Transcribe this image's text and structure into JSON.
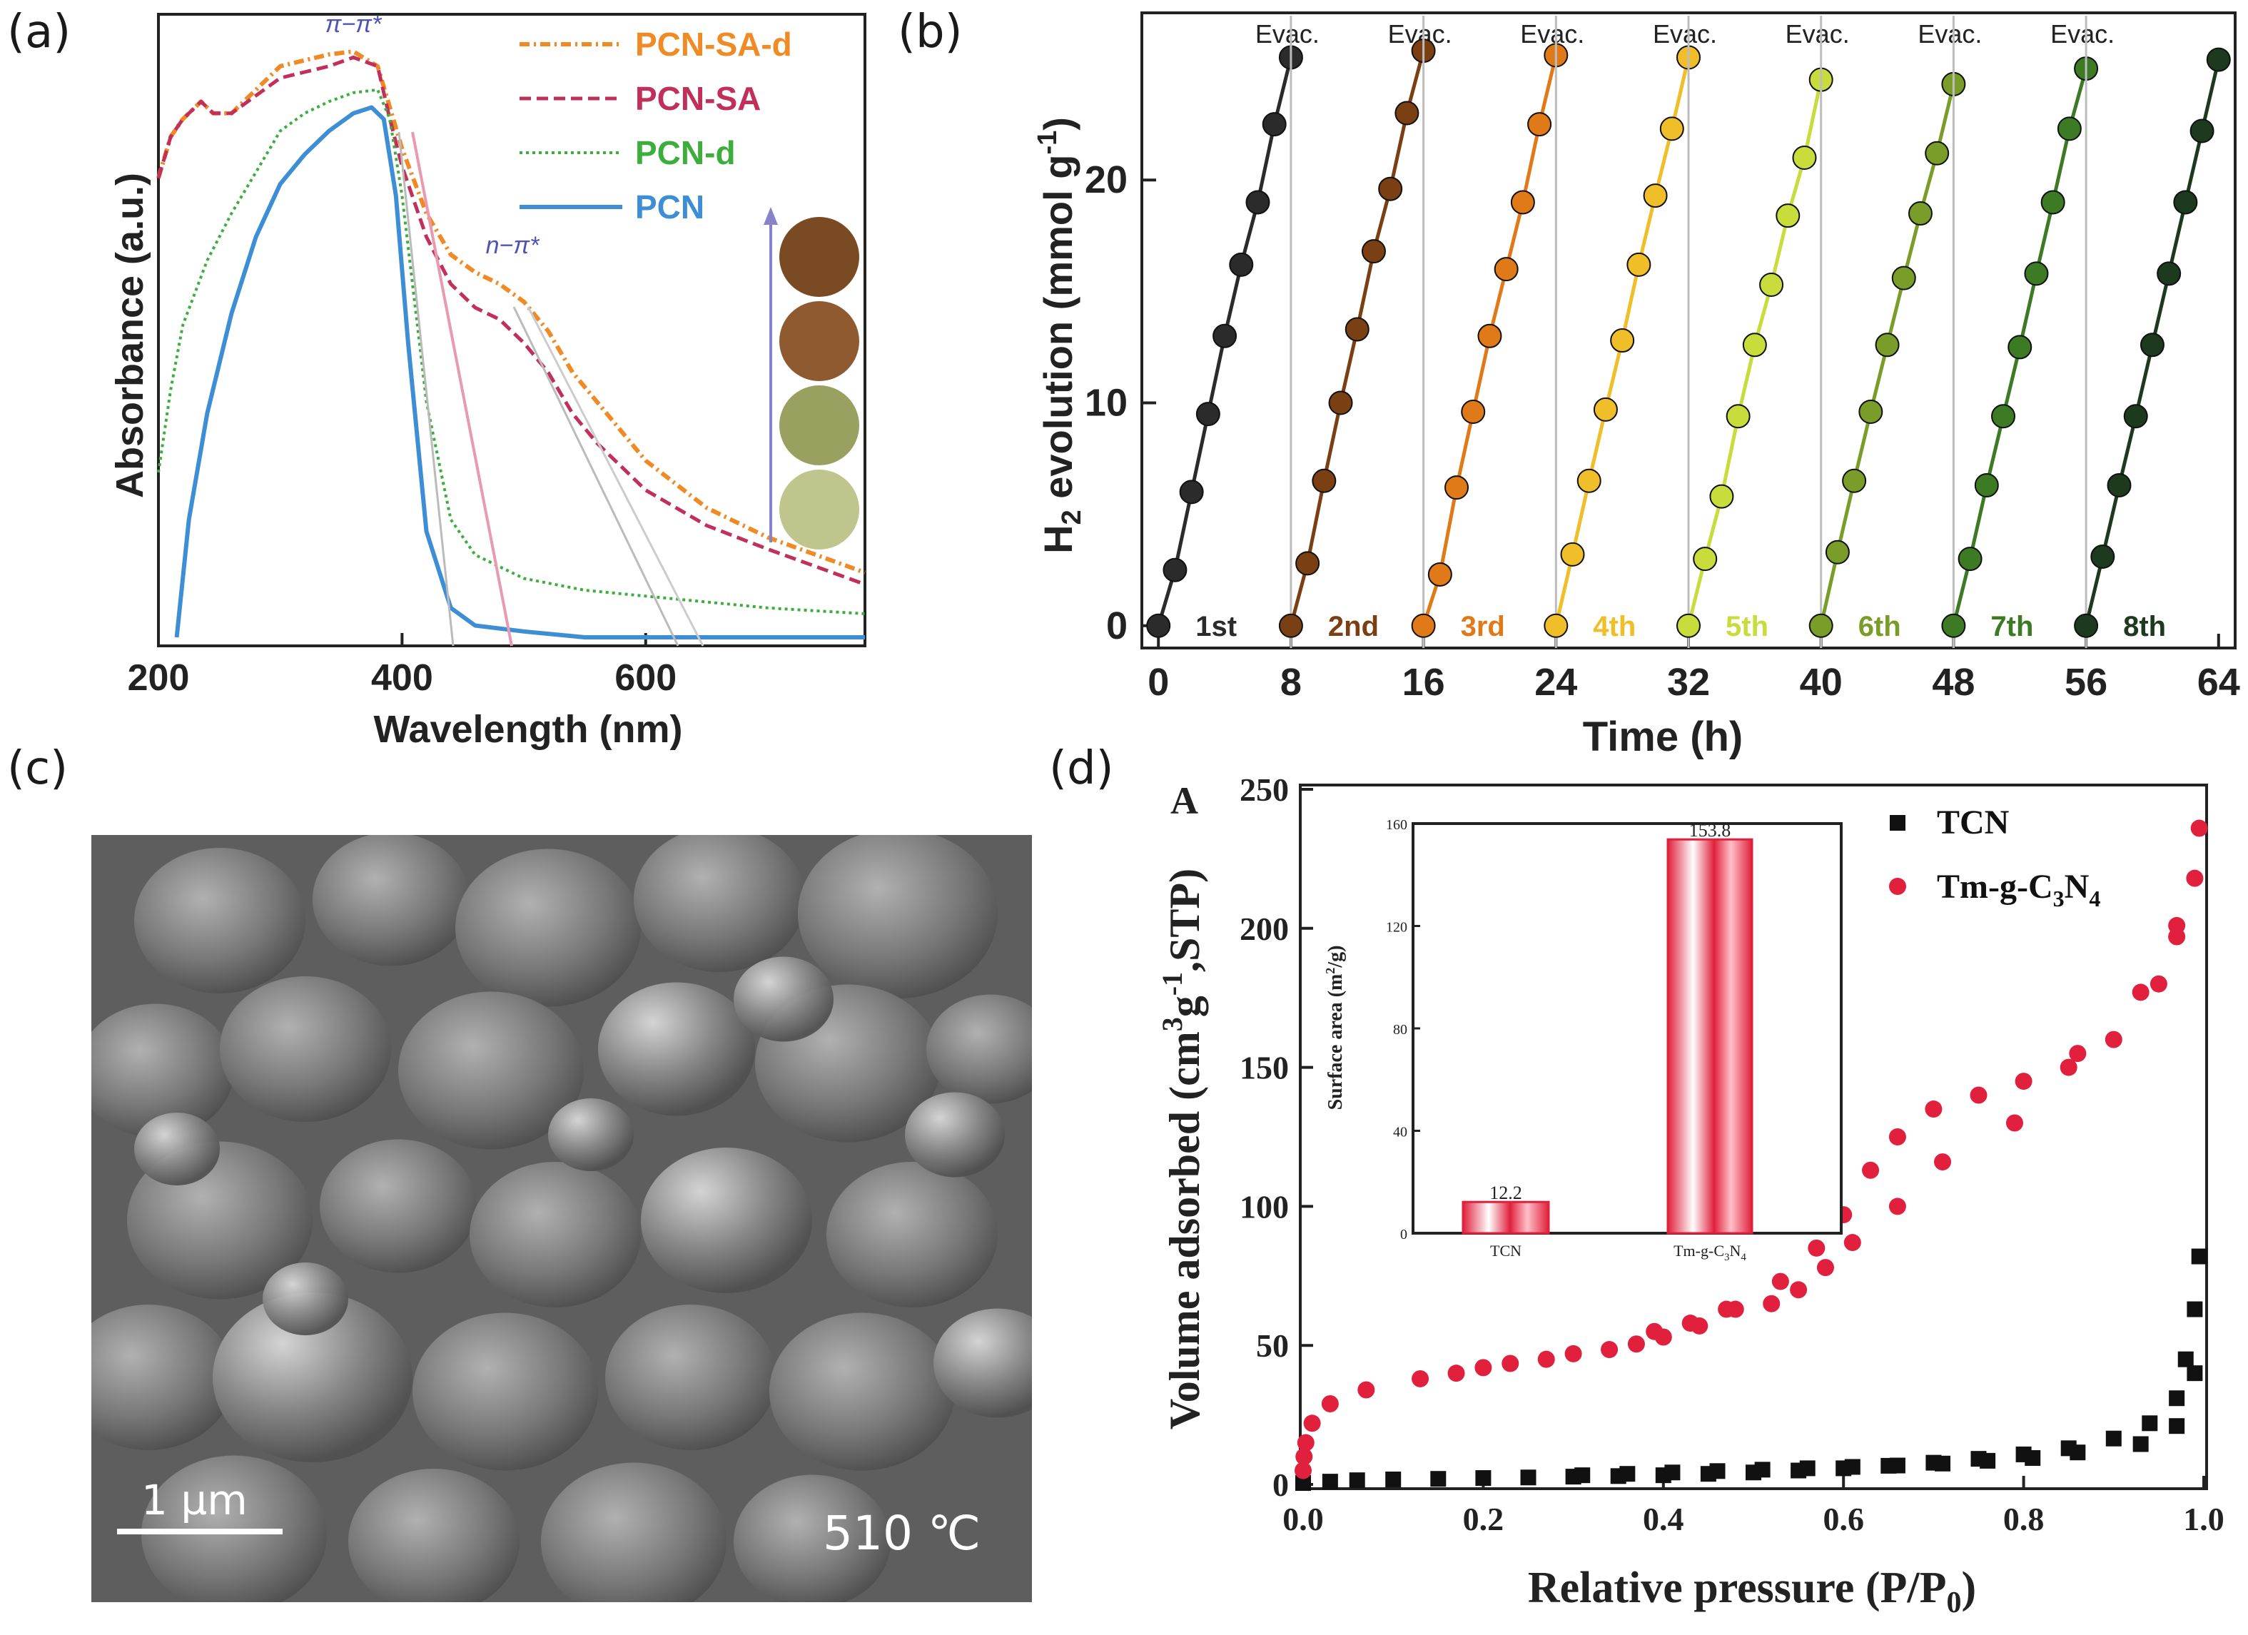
{
  "panels": {
    "a": {
      "label": "(a)",
      "chart_data": {
        "type": "line",
        "xlabel": "Wavelength (nm)",
        "ylabel": "Absorbance (a.u.)",
        "xlim": [
          200,
          780
        ],
        "xticks": [
          "200",
          "400",
          "600"
        ],
        "ylim": [
          0,
          1
        ],
        "annotations": [
          "π−π*",
          "n−π*"
        ],
        "legend_position": "top-right",
        "series": [
          {
            "name": "PCN-SA-d",
            "color": "#f08a24",
            "style": "dash-dot",
            "x": [
              200,
              210,
              220,
              235,
              245,
              260,
              280,
              300,
              320,
              340,
              360,
              380,
              390,
              400,
              420,
              440,
              460,
              480,
              500,
              520,
              540,
              560,
              600,
              650,
              700,
              780
            ],
            "y": [
              0.78,
              0.85,
              0.88,
              0.91,
              0.89,
              0.89,
              0.93,
              0.97,
              0.98,
              0.99,
              0.995,
              0.97,
              0.9,
              0.83,
              0.72,
              0.65,
              0.62,
              0.6,
              0.57,
              0.52,
              0.45,
              0.4,
              0.3,
              0.22,
              0.17,
              0.11
            ]
          },
          {
            "name": "PCN-SA",
            "color": "#c0305a",
            "style": "dash",
            "x": [
              200,
              210,
              220,
              235,
              245,
              260,
              280,
              300,
              320,
              340,
              360,
              380,
              390,
              400,
              420,
              440,
              460,
              480,
              500,
              520,
              540,
              560,
              600,
              650,
              700,
              780
            ],
            "y": [
              0.78,
              0.85,
              0.88,
              0.91,
              0.89,
              0.89,
              0.92,
              0.95,
              0.96,
              0.97,
              0.985,
              0.97,
              0.88,
              0.8,
              0.68,
              0.6,
              0.56,
              0.54,
              0.5,
              0.45,
              0.38,
              0.33,
              0.25,
              0.19,
              0.15,
              0.09
            ]
          },
          {
            "name": "PCN-d",
            "color": "#3cae3c",
            "style": "dot",
            "x": [
              200,
              210,
              220,
              240,
              260,
              280,
              300,
              320,
              340,
              360,
              380,
              390,
              400,
              420,
              440,
              460,
              500,
              550,
              600,
              650,
              700,
              780
            ],
            "y": [
              0.28,
              0.42,
              0.53,
              0.64,
              0.72,
              0.79,
              0.86,
              0.89,
              0.91,
              0.925,
              0.93,
              0.88,
              0.75,
              0.4,
              0.2,
              0.14,
              0.1,
              0.08,
              0.07,
              0.06,
              0.05,
              0.04
            ]
          },
          {
            "name": "PCN",
            "color": "#3e8ed6",
            "style": "solid",
            "x": [
              215,
              225,
              240,
              260,
              280,
              300,
              320,
              340,
              360,
              375,
              385,
              395,
              405,
              420,
              440,
              460,
              500,
              550,
              650,
              780
            ],
            "y": [
              0.0,
              0.2,
              0.38,
              0.55,
              0.68,
              0.77,
              0.82,
              0.86,
              0.89,
              0.9,
              0.88,
              0.75,
              0.5,
              0.18,
              0.05,
              0.02,
              0.01,
              0.0,
              0.0,
              0.0
            ]
          }
        ]
      }
    },
    "b": {
      "label": "(b)",
      "chart_data": {
        "type": "line",
        "xlabel": "Time (h)",
        "ylabel": "H",
        "ylabel_sub": "2",
        "ylabel_rest": " evolution (mmol g",
        "ylabel_sup": "-1",
        "ylabel_end": ")",
        "xlim": [
          -1,
          65
        ],
        "ylim": [
          -1,
          27.5
        ],
        "xticks": [
          "0",
          "8",
          "16",
          "24",
          "32",
          "40",
          "48",
          "56",
          "64"
        ],
        "yticks": [
          "0",
          "10",
          "20"
        ],
        "evac_label": "Evac.",
        "series": [
          {
            "name": "1st",
            "color": "#2b2b2b",
            "start": 0,
            "y": [
              0,
              2.5,
              6,
              9.5,
              13,
              16.2,
              19,
              22.5,
              25.5
            ]
          },
          {
            "name": "2nd",
            "color": "#7a3f12",
            "start": 8,
            "y": [
              0,
              2.8,
              6.5,
              10,
              13.3,
              16.8,
              19.6,
              23,
              25.8
            ]
          },
          {
            "name": "3rd",
            "color": "#e07a18",
            "start": 16,
            "y": [
              0,
              2.3,
              6.2,
              9.6,
              13,
              16,
              19,
              22.5,
              25.6
            ]
          },
          {
            "name": "4th",
            "color": "#f0be28",
            "start": 24,
            "y": [
              0,
              3.2,
              6.5,
              9.7,
              12.8,
              16.2,
              19.3,
              22.3,
              25.5
            ]
          },
          {
            "name": "5th",
            "color": "#c8dc3c",
            "start": 32,
            "y": [
              0,
              3,
              5.8,
              9.4,
              12.6,
              15.3,
              18.4,
              21,
              24.5
            ]
          },
          {
            "name": "6th",
            "color": "#7a9c28",
            "start": 40,
            "y": [
              0,
              3.3,
              6.5,
              9.6,
              12.6,
              15.6,
              18.5,
              21.2,
              24.3
            ]
          },
          {
            "name": "7th",
            "color": "#3c7a24",
            "start": 48,
            "y": [
              0,
              3,
              6.3,
              9.4,
              12.5,
              15.8,
              19,
              22.3,
              25
            ]
          },
          {
            "name": "8th",
            "color": "#1e3a1e",
            "start": 56,
            "y": [
              0,
              3.1,
              6.3,
              9.4,
              12.6,
              15.8,
              19,
              22.2,
              25.4
            ]
          }
        ]
      }
    },
    "c": {
      "label": "(c)",
      "scale_bar_label": "1 µm",
      "temperature_label": "510 ℃"
    },
    "d": {
      "label": "(d)",
      "chart_data": {
        "type": "scatter",
        "corner_label": "A",
        "xlabel": "Relative pressure (P/P",
        "xlabel_sub": "0",
        "xlabel_end": ")",
        "ylabel": "Volume adsorbed (cm",
        "ylabel_sup1": "3",
        "ylabel_mid": "g",
        "ylabel_sup2": "-1",
        "ylabel_end": ",STP)",
        "xlim": [
          0,
          1.0
        ],
        "ylim": [
          0,
          250
        ],
        "xticks": [
          "0.0",
          "0.2",
          "0.4",
          "0.6",
          "0.8",
          "1.0"
        ],
        "yticks": [
          "0",
          "50",
          "100",
          "150",
          "200",
          "250"
        ],
        "legend_position": "top-right",
        "series": [
          {
            "name": "TCN",
            "color": "#111111",
            "marker": "square",
            "x": [
              0.0,
              0.03,
              0.06,
              0.1,
              0.15,
              0.2,
              0.25,
              0.3,
              0.35,
              0.4,
              0.45,
              0.5,
              0.55,
              0.6,
              0.65,
              0.7,
              0.75,
              0.8,
              0.85,
              0.9,
              0.94,
              0.97,
              0.98,
              0.99,
              0.995,
              0.99,
              0.97,
              0.93,
              0.86,
              0.81,
              0.76,
              0.71,
              0.66,
              0.61,
              0.56,
              0.51,
              0.46,
              0.41,
              0.36,
              0.31
            ],
            "y": [
              0.5,
              1,
              1.5,
              1.8,
              2,
              2.3,
              2.5,
              2.8,
              3,
              3.3,
              3.8,
              4.3,
              5,
              5.8,
              6.7,
              7.8,
              9.2,
              10.8,
              13,
              16.5,
              22,
              31,
              45,
              63,
              82,
              40,
              21,
              14.5,
              11.5,
              9.5,
              8.5,
              7.5,
              6.8,
              6.3,
              5.8,
              5.3,
              4.8,
              4.3,
              3.8,
              3.3
            ]
          },
          {
            "name": "Tm-g-C",
            "name_sub1": "3",
            "name_mid": "N",
            "name_sub2": "4",
            "color": "#e0203c",
            "marker": "circle",
            "x": [
              0.0,
              0.001,
              0.003,
              0.01,
              0.03,
              0.07,
              0.13,
              0.17,
              0.2,
              0.23,
              0.27,
              0.3,
              0.34,
              0.37,
              0.4,
              0.44,
              0.48,
              0.53,
              0.57,
              0.6,
              0.63,
              0.66,
              0.7,
              0.75,
              0.8,
              0.85,
              0.9,
              0.95,
              0.97,
              0.99,
              0.995,
              0.97,
              0.93,
              0.86,
              0.79,
              0.71,
              0.66,
              0.61,
              0.58,
              0.55,
              0.52,
              0.47,
              0.43,
              0.39
            ],
            "y": [
              5,
              10,
              15,
              22,
              29,
              34,
              38,
              40,
              42,
              43.5,
              45,
              47,
              48.5,
              50.5,
              53,
              57,
              63,
              73,
              85,
              97,
              113,
              125,
              135,
              140,
              145,
              150,
              160,
              180,
              197,
              218,
              236,
              201,
              177,
              155,
              130,
              116,
              100,
              87,
              78,
              70,
              65,
              63,
              58,
              55
            ]
          }
        ],
        "inset": {
          "type": "bar",
          "ylabel": "Surface area (m",
          "ylabel_sup": "2",
          "ylabel_end": "/g)",
          "ylim": [
            0,
            160
          ],
          "yticks": [
            "0",
            "40",
            "80",
            "120",
            "160"
          ],
          "categories": [
            "TCN",
            "Tm-g-C3N4"
          ],
          "category_labels": {
            "c1": "TCN",
            "c2_main": "Tm-g-C",
            "c2_sub1": "3",
            "c2_mid": "N",
            "c2_sub2": "4"
          },
          "values": [
            12.2,
            153.8
          ],
          "value_labels": [
            "12.2",
            "153.8"
          ],
          "color": "#e0203c"
        }
      }
    }
  }
}
